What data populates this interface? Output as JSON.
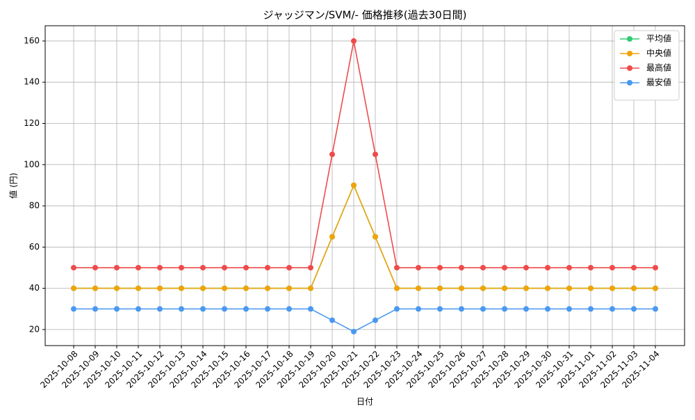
{
  "chart_data": {
    "type": "line",
    "title": "ジャッジマン/SVM/- 価格推移(過去30日間)",
    "x_label": "日付",
    "y_label": "値 (円)",
    "categories": [
      "2025-10-08",
      "2025-10-09",
      "2025-10-10",
      "2025-10-11",
      "2025-10-12",
      "2025-10-13",
      "2025-10-14",
      "2025-10-15",
      "2025-10-16",
      "2025-10-17",
      "2025-10-18",
      "2025-10-19",
      "2025-10-20",
      "2025-10-21",
      "2025-10-22",
      "2025-10-23",
      "2025-10-24",
      "2025-10-25",
      "2025-10-26",
      "2025-10-27",
      "2025-10-28",
      "2025-10-29",
      "2025-10-30",
      "2025-10-31",
      "2025-11-01",
      "2025-11-02",
      "2025-11-03",
      "2025-11-04"
    ],
    "series": [
      {
        "name": "平均値",
        "color": "#2ecc71",
        "values": [
          40,
          40,
          40,
          40,
          40,
          40,
          40,
          40,
          40,
          40,
          40,
          40,
          65,
          90,
          65,
          40,
          40,
          40,
          40,
          40,
          40,
          40,
          40,
          40,
          40,
          40,
          40,
          40
        ]
      },
      {
        "name": "中央値",
        "color": "#f0a30a",
        "values": [
          40,
          40,
          40,
          40,
          40,
          40,
          40,
          40,
          40,
          40,
          40,
          40,
          65,
          90,
          65,
          40,
          40,
          40,
          40,
          40,
          40,
          40,
          40,
          40,
          40,
          40,
          40,
          40
        ]
      },
      {
        "name": "最高値",
        "color": "#ef4b4b",
        "values": [
          50,
          50,
          50,
          50,
          50,
          50,
          50,
          50,
          50,
          50,
          50,
          50,
          105,
          160,
          105,
          50,
          50,
          50,
          50,
          50,
          50,
          50,
          50,
          50,
          50,
          50,
          50,
          50
        ]
      },
      {
        "name": "最安値",
        "color": "#4a98f0",
        "values": [
          30,
          30,
          30,
          30,
          30,
          30,
          30,
          30,
          30,
          30,
          30,
          30,
          24.5,
          19,
          24.5,
          30,
          30,
          30,
          30,
          30,
          30,
          30,
          30,
          30,
          30,
          30,
          30,
          30
        ]
      }
    ],
    "ylim": [
      12.2,
      167.4
    ],
    "yticks": [
      20,
      40,
      60,
      80,
      100,
      120,
      140,
      160
    ],
    "grid": true,
    "legend": "upper right"
  }
}
